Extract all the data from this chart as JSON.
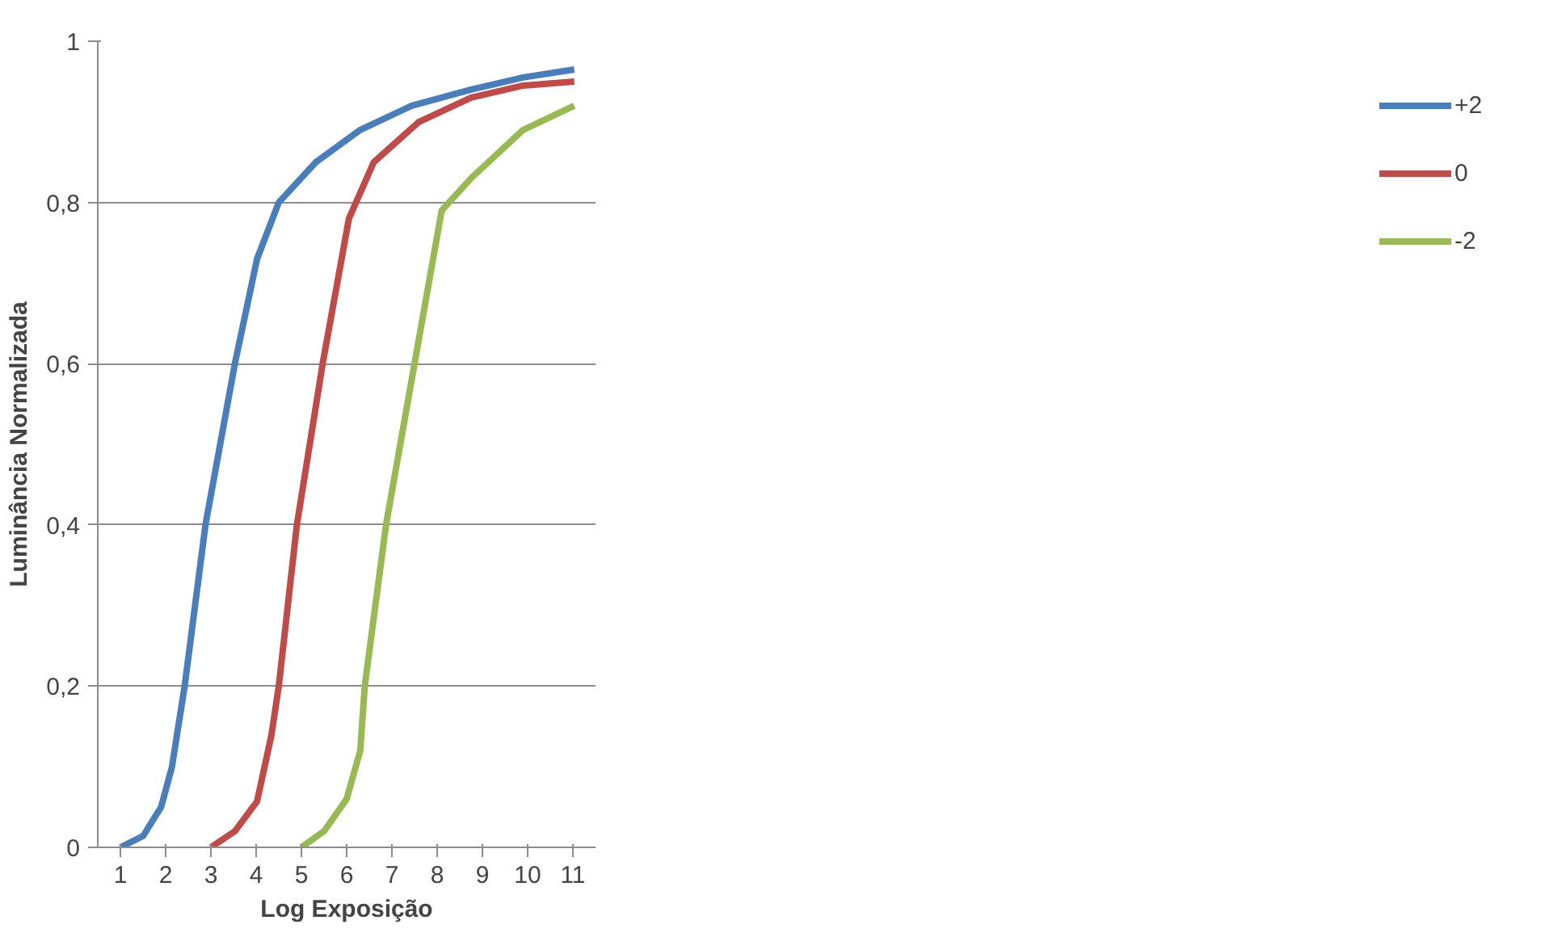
{
  "chart_data": {
    "type": "line",
    "xlabel": "Log Exposição",
    "ylabel": "Luminância Normalizada",
    "xlim": [
      0.5,
      11.5
    ],
    "xticks": [
      1,
      2,
      3,
      4,
      5,
      6,
      7,
      8,
      9,
      10,
      11
    ],
    "ylim": [
      0,
      1
    ],
    "yticks": [
      {
        "value": 0,
        "label": "0"
      },
      {
        "value": 0.2,
        "label": "0,2"
      },
      {
        "value": 0.4,
        "label": "0,4"
      },
      {
        "value": 0.6,
        "label": "0,6"
      },
      {
        "value": 0.8,
        "label": "0,8"
      },
      {
        "value": 1,
        "label": "1"
      }
    ],
    "grid": "y",
    "legend": "right",
    "line_style": "solid",
    "marker": "none",
    "series": [
      {
        "name": "+2",
        "color": "#4a7ebb",
        "x": [
          1,
          1.5,
          1.9,
          2.14,
          2.42,
          2.88,
          3.53,
          4.02,
          4.5,
          5.32,
          6.3,
          7.44,
          8.75,
          9.9,
          11.03
        ],
        "values": [
          0,
          0.014,
          0.05,
          0.1,
          0.2,
          0.4,
          0.6,
          0.73,
          0.8,
          0.85,
          0.89,
          0.92,
          0.94,
          0.955,
          0.965
        ]
      },
      {
        "name": "0",
        "color": "#be4b48",
        "x": [
          3,
          3.53,
          4.02,
          4.34,
          4.5,
          4.9,
          5.47,
          6.05,
          6.6,
          7.6,
          8.75,
          9.9,
          11.03
        ],
        "values": [
          0,
          0.02,
          0.057,
          0.14,
          0.2,
          0.4,
          0.6,
          0.78,
          0.85,
          0.9,
          0.93,
          0.945,
          0.95
        ]
      },
      {
        "name": "-2",
        "color": "#98b954",
        "x": [
          5,
          5.5,
          6,
          6.3,
          6.4,
          6.87,
          7.5,
          8.1,
          8.75,
          9.9,
          11.03
        ],
        "values": [
          0,
          0.02,
          0.06,
          0.12,
          0.2,
          0.4,
          0.6,
          0.79,
          0.83,
          0.89,
          0.92
        ]
      }
    ]
  }
}
